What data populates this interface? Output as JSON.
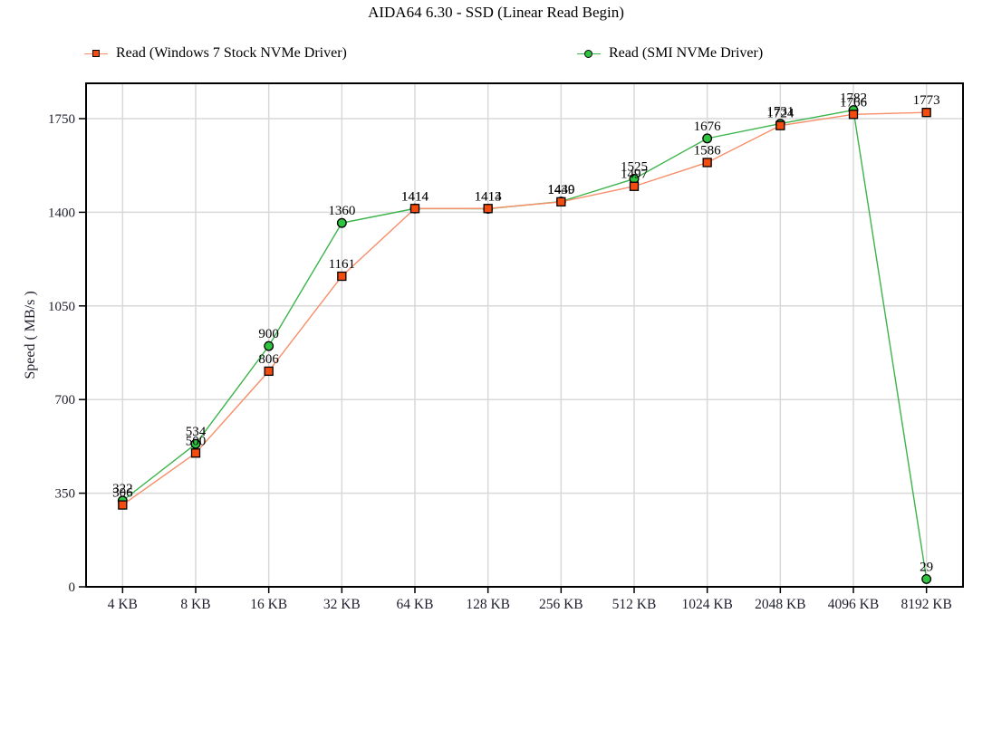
{
  "title": "AIDA64 6.30 - SSD (Linear Read Begin)",
  "chart_data": {
    "type": "line",
    "title": "AIDA64 6.30 - SSD (Linear Read Begin)",
    "categories": [
      "4 KB",
      "8 KB",
      "16 KB",
      "32 KB",
      "64 KB",
      "128 KB",
      "256 KB",
      "512 KB",
      "1024 KB",
      "2048 KB",
      "4096 KB",
      "8192 KB"
    ],
    "series": [
      {
        "name": "Read (Windows 7 Stock NVMe Driver)",
        "marker": "square",
        "marker_color": "#F44B0E",
        "line_color": "#F78E69",
        "values": [
          306,
          500,
          806,
          1161,
          1414,
          1414,
          1439,
          1497,
          1586,
          1724,
          1766,
          1773
        ]
      },
      {
        "name": "Read (SMI NVMe Driver)",
        "marker": "circle",
        "marker_color": "#2EC440",
        "line_color": "#3CB44B",
        "values": [
          322,
          534,
          900,
          1360,
          1414,
          1413,
          1440,
          1525,
          1676,
          1731,
          1782,
          29
        ]
      }
    ],
    "xlabel": "",
    "ylabel": "Speed ( MB/s )",
    "yticks": [
      0,
      350,
      700,
      1050,
      1400,
      1750
    ],
    "ylim": [
      0,
      1882
    ],
    "grid": true,
    "legend_position": "top-left",
    "colors": {
      "background": "#FFFFFF",
      "grid": "#D9D9D9",
      "axis": "#000000",
      "tick_text": "#1F1F2E",
      "point_label": "#000000"
    }
  }
}
